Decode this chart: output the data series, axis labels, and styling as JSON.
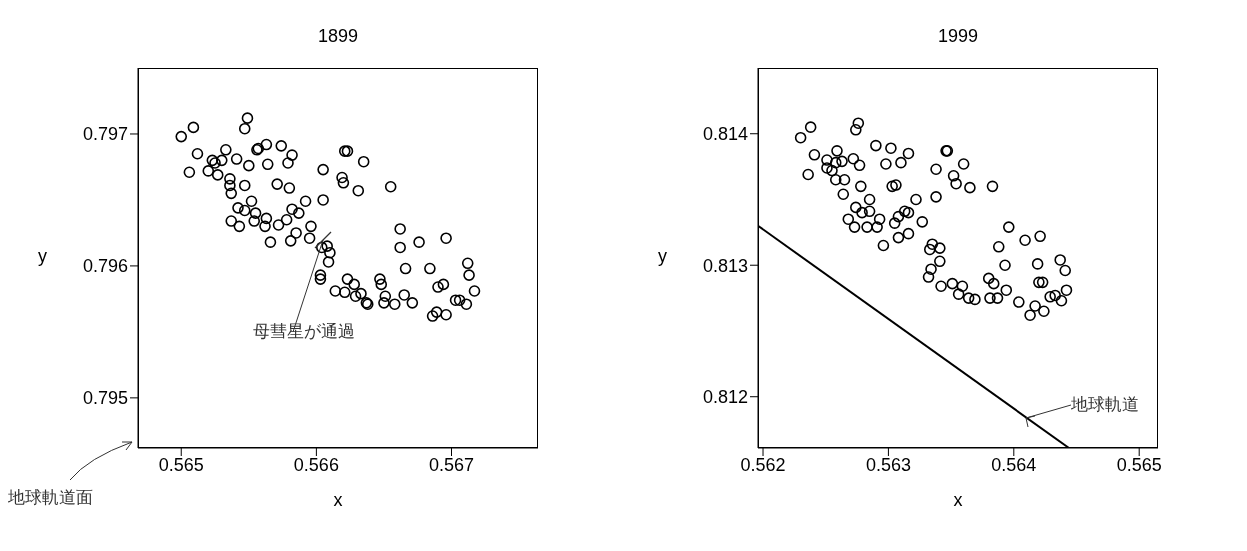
{
  "chart_data": [
    {
      "type": "scatter",
      "title": "1899",
      "xlabel": "x",
      "ylabel": "y",
      "xlim": [
        0.56468,
        0.56764
      ],
      "ylim": [
        0.79462,
        0.7975
      ],
      "xticks": [
        0.565,
        0.566,
        0.567
      ],
      "yticks": [
        0.795,
        0.796,
        0.797
      ],
      "marker": "circle",
      "series": [
        {
          "color": "#000000",
          "x": [
            0.565,
            0.56509,
            0.56506,
            0.56512,
            0.56523,
            0.56525,
            0.5652,
            0.56527,
            0.5653,
            0.56533,
            0.56541,
            0.56536,
            0.56536,
            0.56537,
            0.56549,
            0.56547,
            0.5655,
            0.56547,
            0.56556,
            0.56557,
            0.56563,
            0.56564,
            0.56574,
            0.56582,
            0.56579,
            0.56571,
            0.5658,
            0.56552,
            0.56542,
            0.56547,
            0.56537,
            0.56543,
            0.56555,
            0.56554,
            0.56563,
            0.56562,
            0.56572,
            0.56578,
            0.56582,
            0.56587,
            0.56592,
            0.56605,
            0.56605,
            0.56619,
            0.5662,
            0.56631,
            0.56621,
            0.56623,
            0.56635,
            0.56655,
            0.56566,
            0.56581,
            0.56585,
            0.56596,
            0.56595,
            0.56604,
            0.56608,
            0.5661,
            0.56609,
            0.56603,
            0.56603,
            0.56614,
            0.56623,
            0.56621,
            0.56628,
            0.56629,
            0.56633,
            0.56638,
            0.56637,
            0.56647,
            0.56648,
            0.56651,
            0.5665,
            0.56658,
            0.56665,
            0.56671,
            0.56662,
            0.56662,
            0.56666,
            0.56676,
            0.56696,
            0.56684,
            0.5669,
            0.56694,
            0.56712,
            0.56713,
            0.56717,
            0.56703,
            0.56706,
            0.56711,
            0.56686,
            0.56689,
            0.56696
          ],
          "values": [
            0.79698,
            0.79705,
            0.79671,
            0.79685,
            0.7968,
            0.79678,
            0.79672,
            0.79669,
            0.7968,
            0.79688,
            0.79681,
            0.79666,
            0.79661,
            0.79655,
            0.79712,
            0.79704,
            0.79676,
            0.79661,
            0.79688,
            0.79689,
            0.79692,
            0.79677,
            0.79691,
            0.79684,
            0.79678,
            0.79662,
            0.79659,
            0.79649,
            0.79644,
            0.79642,
            0.79634,
            0.7963,
            0.7964,
            0.79634,
            0.79636,
            0.7963,
            0.79631,
            0.79635,
            0.79643,
            0.7964,
            0.79649,
            0.7965,
            0.79673,
            0.79667,
            0.79663,
            0.79657,
            0.79687,
            0.79687,
            0.79679,
            0.7966,
            0.79618,
            0.79619,
            0.79625,
            0.7963,
            0.79621,
            0.79614,
            0.79615,
            0.7961,
            0.79603,
            0.79593,
            0.7959,
            0.79581,
            0.7959,
            0.7958,
            0.79586,
            0.79577,
            0.79579,
            0.79571,
            0.79572,
            0.7959,
            0.79586,
            0.79577,
            0.79572,
            0.79571,
            0.79578,
            0.79572,
            0.79628,
            0.79614,
            0.79598,
            0.79618,
            0.79621,
            0.79598,
            0.79584,
            0.79586,
            0.79602,
            0.79593,
            0.79581,
            0.79574,
            0.79574,
            0.79571,
            0.79562,
            0.79565,
            0.79563
          ]
        }
      ],
      "annotations": [
        {
          "text": "母彗星が通過",
          "x": 0.56605,
          "y": 0.7962
        },
        "地球軌道面"
      ]
    },
    {
      "type": "scatter",
      "title": "1999",
      "xlabel": "x",
      "ylabel": "y",
      "xlim": [
        0.56196,
        0.56515
      ],
      "ylim": [
        0.81161,
        0.8145
      ],
      "xticks": [
        0.562,
        0.563,
        0.564,
        0.565
      ],
      "yticks": [
        0.812,
        0.813,
        0.814
      ],
      "marker": "circle",
      "series": [
        {
          "color": "#000000",
          "x": [
            0.5623,
            0.56238,
            0.56241,
            0.56236,
            0.56251,
            0.56251,
            0.56255,
            0.56258,
            0.56259,
            0.56263,
            0.56258,
            0.56265,
            0.56264,
            0.56272,
            0.56277,
            0.56276,
            0.56274,
            0.56278,
            0.5629,
            0.56302,
            0.56298,
            0.5631,
            0.56316,
            0.56303,
            0.56306,
            0.56285,
            0.56274,
            0.56279,
            0.56285,
            0.56268,
            0.56273,
            0.56283,
            0.56291,
            0.56293,
            0.56305,
            0.56308,
            0.56313,
            0.56316,
            0.56322,
            0.56327,
            0.56308,
            0.56316,
            0.56296,
            0.56338,
            0.56338,
            0.56346,
            0.56347,
            0.56352,
            0.56354,
            0.5636,
            0.56365,
            0.56383,
            0.56335,
            0.56341,
            0.56333,
            0.56341,
            0.56334,
            0.56332,
            0.56342,
            0.56351,
            0.56359,
            0.56356,
            0.56364,
            0.56369,
            0.5638,
            0.56384,
            0.56381,
            0.56387,
            0.56394,
            0.56404,
            0.56396,
            0.56388,
            0.56393,
            0.56409,
            0.56421,
            0.56419,
            0.5642,
            0.56423,
            0.56437,
            0.56441,
            0.56442,
            0.56429,
            0.56433,
            0.56438,
            0.56413,
            0.56417,
            0.56424
          ],
          "values": [
            0.81397,
            0.81405,
            0.81384,
            0.81369,
            0.8138,
            0.81374,
            0.81372,
            0.81378,
            0.81387,
            0.81379,
            0.81365,
            0.81365,
            0.81354,
            0.81381,
            0.81376,
            0.81408,
            0.81403,
            0.8136,
            0.81391,
            0.81389,
            0.81377,
            0.81378,
            0.81385,
            0.8136,
            0.81361,
            0.8135,
            0.81344,
            0.8134,
            0.81341,
            0.81335,
            0.81329,
            0.81329,
            0.81329,
            0.81335,
            0.81332,
            0.81337,
            0.81341,
            0.8134,
            0.8135,
            0.81333,
            0.81321,
            0.81324,
            0.81315,
            0.81352,
            0.81373,
            0.81387,
            0.81387,
            0.81368,
            0.81362,
            0.81377,
            0.81359,
            0.8136,
            0.81316,
            0.81313,
            0.81312,
            0.81303,
            0.81297,
            0.81291,
            0.81284,
            0.81286,
            0.81284,
            0.81278,
            0.81275,
            0.81274,
            0.8129,
            0.81286,
            0.81275,
            0.81275,
            0.81281,
            0.81272,
            0.81329,
            0.81314,
            0.813,
            0.81319,
            0.81322,
            0.81301,
            0.81287,
            0.81287,
            0.81304,
            0.81296,
            0.81281,
            0.81276,
            0.81277,
            0.81273,
            0.81262,
            0.81269,
            0.81265
          ]
        },
        {
          "type": "line",
          "color": "#000000",
          "marker": "none",
          "x": [
            0.56196,
            0.56444
          ],
          "values": [
            0.8133,
            0.81161
          ]
        }
      ],
      "annotations": [
        {
          "text": "地球軌道",
          "x": 0.5641,
          "y": 0.81184
        }
      ]
    }
  ]
}
